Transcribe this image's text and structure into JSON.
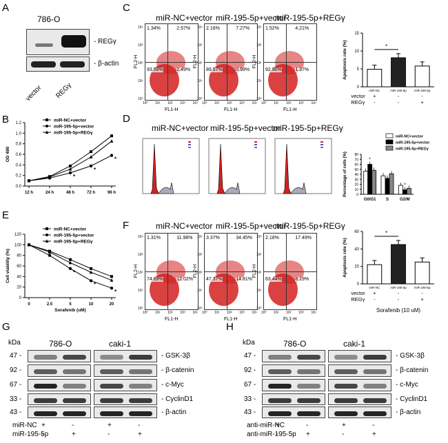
{
  "panels": {
    "A": "A",
    "B": "B",
    "C": "C",
    "D": "D",
    "E": "E",
    "F": "F",
    "G": "G",
    "H": "H"
  },
  "a": {
    "cell": "786-O",
    "bands": [
      "- REGγ",
      "- β-actin"
    ],
    "lanes": [
      "vector",
      "REGγ"
    ]
  },
  "groups": [
    "miR-NC+vector",
    "miR-195-5p+vector",
    "miR-195-5p+REGγ"
  ],
  "flow_axes": {
    "y": "FL2-H",
    "x": "FL1-H"
  },
  "flow_ticks": [
    "10⁰",
    "10¹",
    "10²",
    "10³",
    "10⁴"
  ],
  "c_quadrants": [
    [
      "1.34%",
      "2.57%",
      "93.59%",
      "2.49%"
    ],
    [
      "2.16%",
      "7.27%",
      "89.57%",
      "0.99%"
    ],
    [
      "1.52%",
      "4.21%",
      "92.90%",
      "1.37%"
    ]
  ],
  "f_quadrants": [
    [
      "1.31%",
      "11.98%",
      "74.69%",
      "12.02%"
    ],
    [
      "3.37%",
      "34.45%",
      "47.37%",
      "14.81%"
    ],
    [
      "2.18%",
      "17.49%",
      "63.44%",
      "8.19%"
    ]
  ],
  "cycle_legend": [
    "G0/G1",
    "S",
    "G2/M"
  ],
  "treat": {
    "row1": "vector",
    "row2": "REGγ",
    "plus": "+",
    "minus": "-",
    "sorafenib": "Sorafenib (10 uM)"
  },
  "wb_g": {
    "kda": "kDa",
    "cells": [
      "786-O",
      "caki-1"
    ],
    "markers": [
      "47",
      "92",
      "67",
      "33",
      "43"
    ],
    "proteins": [
      "- GSK-3β",
      "- β-catenin",
      "- c-Myc",
      "- CyclinD1",
      "- β-actin"
    ],
    "row1": "miR-NC",
    "row2": "miR-195-5p",
    "row1_signs": [
      "+",
      "-",
      "+",
      "-"
    ],
    "row2_signs": [
      "-",
      "+",
      "-",
      "+"
    ]
  },
  "wb_h": {
    "kda": "kDa",
    "cells": [
      "786-O",
      "caki-1"
    ],
    "markers": [
      "47",
      "92",
      "67",
      "33",
      "43"
    ],
    "proteins": [
      "- GSK-3β",
      "- β-catenin",
      "- c-Myc",
      "- CyclinD1",
      "- β-actin"
    ],
    "row1": "anti-miR-NC",
    "row2": "anti-miR-195-5p",
    "row1_signs": [
      "+",
      "-",
      "+",
      "-"
    ],
    "row2_signs": [
      "-",
      "+",
      "-",
      "+"
    ]
  },
  "colors": {
    "flow": "#d42020",
    "dark": "#222222",
    "black": "#000000",
    "grey": "#888888"
  },
  "chart_data": [
    {
      "id": "B",
      "type": "line",
      "ylabel": "OD 490",
      "xlabel": "",
      "categories": [
        "12 h",
        "24 h",
        "48 h",
        "72 h",
        "96 h"
      ],
      "ylim": [
        0.0,
        1.2
      ],
      "yticks": [
        "0.0",
        "0.2",
        "0.4",
        "0.6",
        "0.8",
        "1.0",
        "1.2"
      ],
      "series": [
        {
          "name": "miR-NC+vector",
          "values": [
            0.1,
            0.18,
            0.38,
            0.65,
            0.95
          ]
        },
        {
          "name": "miR-195-5p+vector",
          "values": [
            0.1,
            0.15,
            0.25,
            0.38,
            0.58
          ]
        },
        {
          "name": "miR-195-5p+REGγ",
          "values": [
            0.1,
            0.17,
            0.32,
            0.55,
            0.85
          ]
        }
      ],
      "annotations": [
        "*",
        "*",
        "*"
      ]
    },
    {
      "id": "E",
      "type": "line",
      "ylabel": "Cell viability (%)",
      "xlabel": "Sorafenib (uM)",
      "x": [
        0,
        2.5,
        5,
        10,
        20
      ],
      "xticks": [
        "0",
        "2.5",
        "5",
        "10",
        "20"
      ],
      "ylim": [
        0,
        120
      ],
      "yticks": [
        "0",
        "20",
        "40",
        "60",
        "80",
        "100",
        "120"
      ],
      "series": [
        {
          "name": "miR-NC+vector",
          "values": [
            100,
            88,
            72,
            55,
            40
          ]
        },
        {
          "name": "miR-195-5p+vector",
          "values": [
            100,
            80,
            55,
            32,
            18
          ]
        },
        {
          "name": "miR-195-5p+REGγ",
          "values": [
            100,
            86,
            66,
            48,
            33
          ]
        }
      ],
      "annotations": [
        "*",
        "*",
        "*"
      ]
    },
    {
      "id": "C-bar",
      "type": "bar",
      "ylabel": "Apoptosis rate (%)",
      "categories": [
        "miR-NC",
        "miR-195-5p",
        "miR-195-5p"
      ],
      "values": [
        4.9,
        8.1,
        5.8
      ],
      "ylim": [
        0,
        15
      ],
      "yticks": [
        "0",
        "5",
        "10",
        "15"
      ],
      "annotations": [
        "*"
      ]
    },
    {
      "id": "D-bar",
      "type": "bar",
      "ylabel": "Percentage of cells (%)",
      "categories": [
        "G0/G1",
        "S",
        "G2/M"
      ],
      "ylim": [
        0,
        80
      ],
      "yticks": [
        "0",
        "10",
        "20",
        "30",
        "40",
        "50",
        "60",
        "70",
        "80"
      ],
      "series": [
        {
          "name": "miR-NC+vector",
          "values": [
            46,
            37,
            18
          ]
        },
        {
          "name": "miR-195-5p+vector",
          "values": [
            60,
            32,
            9
          ]
        },
        {
          "name": "miR-195-5p+REGγ",
          "values": [
            48,
            41,
            12
          ]
        }
      ],
      "annotations": [
        "*",
        "*"
      ]
    },
    {
      "id": "F-bar",
      "type": "bar",
      "ylabel": "Apoptosis rate (%)",
      "categories": [
        "miR-NC",
        "miR-195-5p",
        "miR-195-5p"
      ],
      "values": [
        22,
        45,
        25
      ],
      "ylim": [
        0,
        60
      ],
      "yticks": [
        "0",
        "20",
        "40",
        "60"
      ],
      "annotations": [
        "*"
      ]
    }
  ]
}
